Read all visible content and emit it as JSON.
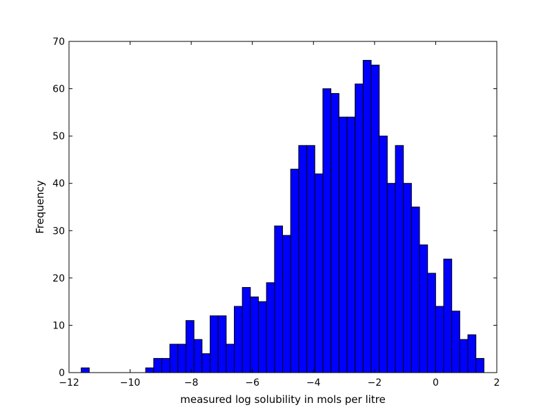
{
  "chart_data": {
    "type": "bar",
    "title": "",
    "xlabel": "measured log solubility in mols per litre",
    "ylabel": "Frequency",
    "xlim": [
      -12,
      2
    ],
    "ylim": [
      0,
      70
    ],
    "xticks": [
      -12,
      -10,
      -8,
      -6,
      -4,
      -2,
      0,
      2
    ],
    "xtick_labels": [
      "−12",
      "−10",
      "−8",
      "−6",
      "−4",
      "−2",
      "0",
      "2"
    ],
    "yticks": [
      0,
      10,
      20,
      30,
      40,
      50,
      60,
      70
    ],
    "ytick_labels": [
      "0",
      "10",
      "20",
      "30",
      "40",
      "50",
      "60",
      "70"
    ],
    "grid": false,
    "bar_color": "#0000ff",
    "bin_start": -11.6,
    "bin_end": 1.58,
    "values": [
      1,
      0,
      0,
      0,
      0,
      0,
      0,
      0,
      1,
      3,
      3,
      6,
      6,
      11,
      7,
      4,
      12,
      12,
      6,
      14,
      18,
      16,
      15,
      19,
      31,
      29,
      43,
      48,
      48,
      42,
      60,
      59,
      54,
      54,
      61,
      66,
      65,
      50,
      40,
      48,
      40,
      35,
      27,
      21,
      14,
      24,
      13,
      7,
      8,
      3
    ]
  }
}
